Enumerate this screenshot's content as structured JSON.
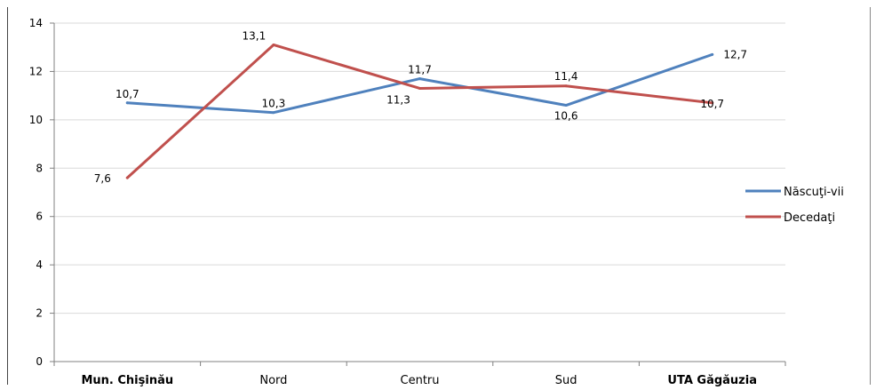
{
  "chart_data": {
    "type": "line",
    "categories": [
      "Mun. Chişinău",
      "Nord",
      "Centru",
      "Sud",
      "UTA Găgăuzia"
    ],
    "series": [
      {
        "name": "Născuţi-vii",
        "color": "#4F81BD",
        "values": [
          10.7,
          10.3,
          11.7,
          10.6,
          12.7
        ]
      },
      {
        "name": "Decedaţi",
        "color": "#C0504D",
        "values": [
          7.6,
          13.1,
          11.3,
          11.4,
          10.7
        ]
      }
    ],
    "data_labels": {
      "series_0": [
        "10,7",
        "10,3",
        "11,7",
        "10,6",
        "12,7"
      ],
      "series_1": [
        "7,6",
        "13,1",
        "11,3",
        "11,4",
        "10,7"
      ]
    },
    "ylim": [
      0,
      14
    ],
    "yticks": [
      0,
      2,
      4,
      6,
      8,
      10,
      12,
      14
    ],
    "grid": true,
    "legend": "right"
  }
}
